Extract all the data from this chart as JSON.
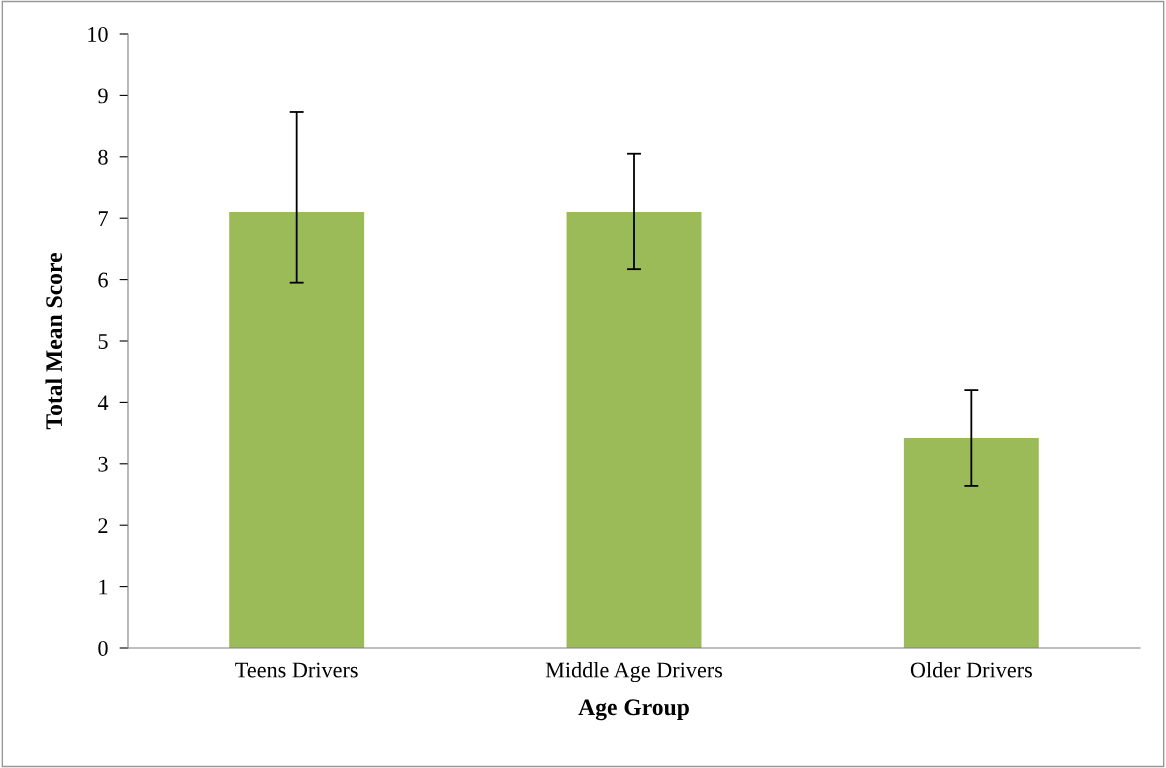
{
  "chart_data": {
    "type": "bar",
    "xlabel": "Age Group",
    "ylabel": "Total Mean Score",
    "categories": [
      "Teens Drivers",
      "Middle Age Drivers",
      "Older Drivers"
    ],
    "values": [
      7.1,
      7.1,
      3.42
    ],
    "color": "#9bbb59",
    "errors": [
      [
        5.95,
        8.73
      ],
      [
        6.17,
        8.05
      ],
      [
        2.64,
        4.2
      ]
    ],
    "ylim": [
      0,
      10
    ],
    "yticks": [
      0,
      1,
      2,
      3,
      4,
      5,
      6,
      7,
      8,
      9,
      10
    ],
    "grid": false,
    "legend": false
  }
}
